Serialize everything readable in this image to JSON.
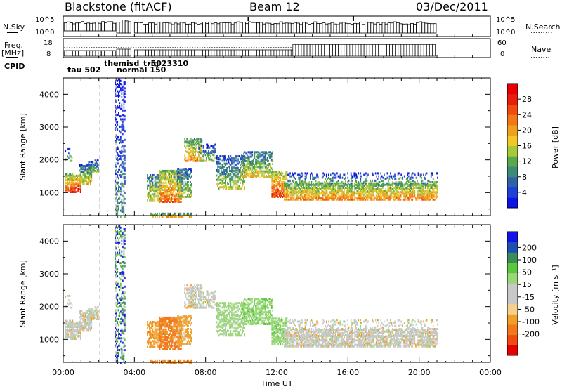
{
  "header": {
    "station": "Blackstone (fitACF)",
    "beam": "Beam 12",
    "date": "03/Dec/2011"
  },
  "side_labels": {
    "nsky": "N.Sky",
    "freq_line1": "Freq.",
    "freq_line2": "[MHz]",
    "cpid": "CPID",
    "nsearch": "N.Search",
    "nave": "Nave"
  },
  "noise_panel": {
    "left_ticks": [
      "10^5",
      "10^0"
    ],
    "right_ticks": [
      "10^5",
      "10^0"
    ]
  },
  "freq_panel": {
    "left_ticks": [
      "18",
      "8"
    ],
    "right_ticks": [
      "60",
      "0"
    ]
  },
  "cpid_labels": [
    {
      "text": "tau 502",
      "t": 0.25,
      "row": 1
    },
    {
      "text": "themis",
      "t": 3.0,
      "row": 0
    },
    {
      "text": "sd_trig",
      "t": 3.65,
      "row": 0
    },
    {
      "text": "-5023310",
      "t": 4.1,
      "row": 0
    },
    {
      "text": "normal 150",
      "t": 3.0,
      "row": 1
    }
  ],
  "colors": {
    "bar_fill": "#ffffff",
    "bar_edge": "#000000",
    "dashed_line": "#b0b0b0",
    "power_scale": [
      "#0a14e6",
      "#1f3fd9",
      "#2e61a8",
      "#3d8a78",
      "#5aa84a",
      "#a8c83c",
      "#f0c828",
      "#f0a020",
      "#f07818",
      "#f04a10",
      "#e61e0a",
      "#e60000"
    ],
    "velocity_scale": [
      "#e60000",
      "#f04a10",
      "#f0781e",
      "#f0a028",
      "#f5d08c",
      "#c8c8c8",
      "#c8c8c8",
      "#9ad67a",
      "#5ac83c",
      "#3c8c5a",
      "#1e50b4",
      "#1414e6"
    ]
  },
  "chart_data": [
    {
      "type": "heatmap",
      "name": "power",
      "xlabel": "",
      "ylabel": "Slant Range [km]",
      "xlim": [
        0,
        24
      ],
      "ylim": [
        300,
        4500
      ],
      "yticks": [
        1000,
        2000,
        3000,
        4000
      ],
      "colorbar": {
        "label": "Power [dB]",
        "ticks": [
          4,
          8,
          12,
          16,
          20,
          24,
          28
        ],
        "range": [
          0,
          32
        ]
      }
    },
    {
      "type": "heatmap",
      "name": "velocity",
      "xlabel": "Time UT",
      "ylabel": "Slant Range [km]",
      "xlim": [
        0,
        24
      ],
      "ylim": [
        300,
        4500
      ],
      "yticks": [
        1000,
        2000,
        3000,
        4000
      ],
      "xticks": [
        "00:00",
        "04:00",
        "08:00",
        "12:00",
        "16:00",
        "20:00",
        "00:00"
      ],
      "colorbar": {
        "label": "Velocity [m s⁻¹]",
        "ticks": [
          -200,
          -100,
          -50,
          -15,
          15,
          50,
          100,
          200
        ]
      }
    }
  ],
  "scatter_regions": [
    {
      "t0": 0.08,
      "t1": 0.55,
      "r0": 1100,
      "r1": 1600,
      "pw": 18,
      "v": 0,
      "d": 0.75
    },
    {
      "t0": 0.4,
      "t1": 1.0,
      "r0": 1050,
      "r1": 1550,
      "pw": 22,
      "v": 0,
      "d": 0.8
    },
    {
      "t0": 0.9,
      "t1": 1.6,
      "r0": 1300,
      "r1": 1900,
      "pw": 12,
      "v": 0,
      "d": 0.7
    },
    {
      "t0": 1.4,
      "t1": 1.95,
      "r0": 1650,
      "r1": 2050,
      "pw": 8,
      "v": 0,
      "d": 0.55
    },
    {
      "t0": 0.1,
      "t1": 0.5,
      "r0": 2000,
      "r1": 2400,
      "pw": 6,
      "v": 0,
      "d": 0.2
    },
    {
      "t0": 2.9,
      "t1": 3.5,
      "r0": 300,
      "r1": 4500,
      "pw": 4,
      "v": 150,
      "d": 0.35
    },
    {
      "t0": 4.7,
      "t1": 5.5,
      "r0": 800,
      "r1": 1600,
      "pw": 12,
      "v": -40,
      "d": 0.55
    },
    {
      "t0": 5.4,
      "t1": 6.6,
      "r0": 750,
      "r1": 1700,
      "pw": 18,
      "v": -60,
      "d": 0.7
    },
    {
      "t0": 6.4,
      "t1": 7.2,
      "r0": 900,
      "r1": 1800,
      "pw": 10,
      "v": -30,
      "d": 0.55
    },
    {
      "t0": 6.8,
      "t1": 7.8,
      "r0": 2000,
      "r1": 2700,
      "pw": 16,
      "v": 0,
      "d": 0.55
    },
    {
      "t0": 7.6,
      "t1": 8.6,
      "r0": 2000,
      "r1": 2500,
      "pw": 8,
      "v": 0,
      "d": 0.35
    },
    {
      "t0": 8.6,
      "t1": 10.2,
      "r0": 1150,
      "r1": 2150,
      "pw": 10,
      "v": 30,
      "d": 0.5
    },
    {
      "t0": 10.0,
      "t1": 11.8,
      "r0": 1500,
      "r1": 2300,
      "pw": 12,
      "v": 40,
      "d": 0.6
    },
    {
      "t0": 11.7,
      "t1": 12.6,
      "r0": 900,
      "r1": 1700,
      "pw": 20,
      "v": 35,
      "d": 0.65
    },
    {
      "t0": 12.4,
      "t1": 21.0,
      "r0": 820,
      "r1": 1350,
      "pw": 16,
      "v": 0,
      "d": 0.75
    },
    {
      "t0": 12.6,
      "t1": 21.0,
      "r0": 1350,
      "r1": 1650,
      "pw": 6,
      "v": 0,
      "d": 0.25
    },
    {
      "t0": 4.9,
      "t1": 7.2,
      "r0": 300,
      "r1": 400,
      "pw": 14,
      "v": -50,
      "d": 0.6
    }
  ]
}
